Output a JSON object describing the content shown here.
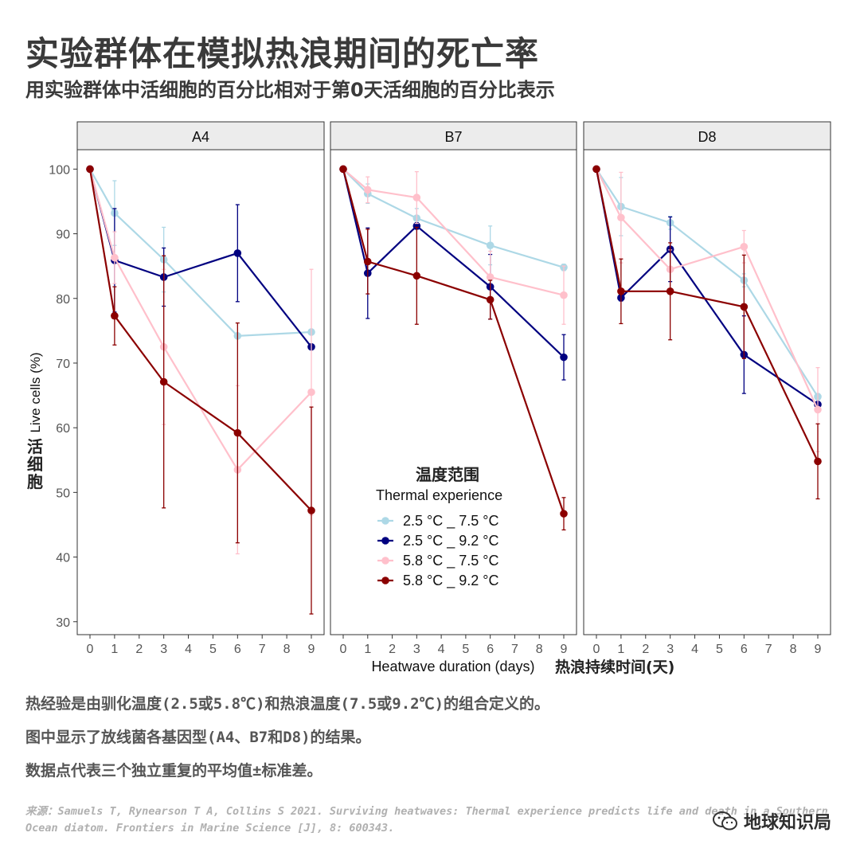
{
  "header": {
    "title": "实验群体在模拟热浪期间的死亡率",
    "subtitle": "用实验群体中活细胞的百分比相对于第0天活细胞的百分比表示"
  },
  "chart_data": {
    "type": "line",
    "facets": [
      "A4",
      "B7",
      "D8"
    ],
    "x_ticks": [
      0,
      1,
      2,
      3,
      4,
      5,
      6,
      7,
      8,
      9
    ],
    "y_ticks": [
      30,
      40,
      50,
      60,
      70,
      80,
      90,
      100
    ],
    "xlim": [
      0,
      9
    ],
    "ylim": [
      28,
      103
    ],
    "xlabel_en": "Heatwave duration (days)",
    "xlabel_zh": "热浪持续时间(天)",
    "ylabel_en": "Live cells (%)",
    "ylabel_zh": "活细胞",
    "legend": {
      "title_zh": "温度范围",
      "title_en": "Thermal experience",
      "placement": "inside B7 panel, lower-left"
    },
    "series": [
      {
        "name": "2.5 °C _ 7.5 °C",
        "color": "#add8e6",
        "points": {
          "A4": [
            [
              0,
              100,
              0
            ],
            [
              1,
              93.2,
              5
            ],
            [
              3,
              86,
              5
            ],
            [
              6,
              74.2,
              0.3
            ],
            [
              9,
              74.8,
              0.3
            ]
          ],
          "B7": [
            [
              0,
              100,
              0
            ],
            [
              1,
              96.2,
              1.5
            ],
            [
              3,
              92.4,
              1.5
            ],
            [
              6,
              88.2,
              3
            ],
            [
              9,
              84.8,
              0.5
            ]
          ],
          "D8": [
            [
              0,
              100,
              0
            ],
            [
              1,
              94.2,
              4.5
            ],
            [
              3,
              91.7,
              1
            ],
            [
              6,
              82.8,
              1
            ],
            [
              9,
              64.8,
              0.5
            ]
          ]
        }
      },
      {
        "name": "2.5 °C _ 9.2 °C",
        "color": "#000080",
        "points": {
          "A4": [
            [
              0,
              100,
              0
            ],
            [
              1,
              85.9,
              8
            ],
            [
              3,
              83.3,
              4.5
            ],
            [
              6,
              87,
              7.5
            ],
            [
              9,
              72.5,
              0.3
            ]
          ],
          "B7": [
            [
              0,
              100,
              0
            ],
            [
              1,
              83.9,
              7
            ],
            [
              3,
              91.2,
              0.5
            ],
            [
              6,
              81.8,
              5
            ],
            [
              9,
              70.9,
              3.5
            ]
          ],
          "D8": [
            [
              0,
              100,
              0
            ],
            [
              1,
              80.1,
              0.5
            ],
            [
              3,
              87.6,
              5
            ],
            [
              6,
              71.3,
              6
            ],
            [
              9,
              63.6,
              0.3
            ]
          ]
        }
      },
      {
        "name": "5.8 °C _ 7.5 °C",
        "color": "#ffc0cb",
        "points": {
          "A4": [
            [
              0,
              100,
              0
            ],
            [
              1,
              86.3,
              4
            ],
            [
              3,
              72.5,
              12
            ],
            [
              6,
              53.5,
              13
            ],
            [
              9,
              65.5,
              19
            ]
          ],
          "B7": [
            [
              0,
              100,
              0
            ],
            [
              1,
              96.8,
              2
            ],
            [
              3,
              95.6,
              4
            ],
            [
              6,
              83.3,
              4
            ],
            [
              9,
              80.5,
              4.5
            ]
          ],
          "D8": [
            [
              0,
              100,
              0
            ],
            [
              1,
              92.5,
              7
            ],
            [
              3,
              84.5,
              3
            ],
            [
              6,
              88,
              2.5
            ],
            [
              9,
              62.8,
              6.5
            ]
          ]
        }
      },
      {
        "name": "5.8 °C _ 9.2 °C",
        "color": "#8b0000",
        "points": {
          "A4": [
            [
              0,
              100,
              0
            ],
            [
              1,
              77.3,
              4.5
            ],
            [
              3,
              67.1,
              19.5
            ],
            [
              6,
              59.2,
              17
            ],
            [
              9,
              47.2,
              16
            ]
          ],
          "B7": [
            [
              0,
              100,
              0
            ],
            [
              1,
              85.7,
              5
            ],
            [
              3,
              83.5,
              7.5
            ],
            [
              6,
              79.8,
              3
            ],
            [
              9,
              46.7,
              2.5
            ]
          ],
          "D8": [
            [
              0,
              100,
              0
            ],
            [
              1,
              81.1,
              5
            ],
            [
              3,
              81.1,
              7.5
            ],
            [
              6,
              78.7,
              8
            ],
            [
              9,
              54.8,
              5.8
            ]
          ]
        }
      }
    ]
  },
  "notes": [
    "热经验是由驯化温度(2.5或5.8℃)和热浪温度(7.5或9.2℃)的组合定义的。",
    "图中显示了放线菌各基因型(A4、B7和D8)的结果。",
    "数据点代表三个独立重复的平均值±标准差。"
  ],
  "source": "来源：Samuels T, Rynearson T A, Collins S 2021. Surviving heatwaves: Thermal experience predicts life and death in a Southern Ocean diatom. Frontiers in Marine Science [J], 8: 600343.",
  "watermark": {
    "text": "地球知识局",
    "icon": "wechat-icon"
  }
}
